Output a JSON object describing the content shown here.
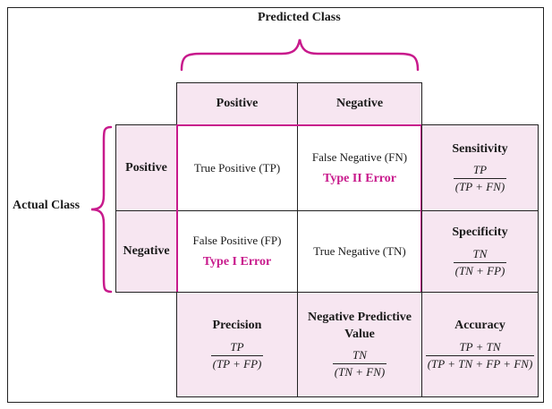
{
  "predicted_class_label": "Predicted Class",
  "actual_class_label": "Actual Class",
  "column_headers": [
    "Positive",
    "Negative"
  ],
  "row_headers": [
    "Positive",
    "Negative"
  ],
  "cells": {
    "tp": {
      "text": "True Positive (TP)"
    },
    "fn": {
      "text": "False Negative (FN)",
      "error": "Type II Error"
    },
    "fp": {
      "text": "False Positive (FP)",
      "error": "Type I Error"
    },
    "tn": {
      "text": "True Negative (TN)"
    }
  },
  "metrics": {
    "sensitivity": {
      "title": "Sensitivity",
      "numerator": "TP",
      "denominator": "(TP + FN)"
    },
    "specificity": {
      "title": "Specificity",
      "numerator": "TN",
      "denominator": "(TN + FP)"
    },
    "precision": {
      "title": "Precision",
      "numerator": "TP",
      "denominator": "(TP + FP)"
    },
    "npv": {
      "title_line1": "Negative Predictive",
      "title_line2": "Value",
      "numerator": "TN",
      "denominator": "(TN + FN)"
    },
    "accuracy": {
      "title": "Accuracy",
      "numerator": "TP + TN",
      "denominator": "(TP + TN + FP + FN)"
    }
  },
  "colors": {
    "magenta": "#c81a8c",
    "pink_fill": "#f7e6f1",
    "grid": "#222222"
  }
}
